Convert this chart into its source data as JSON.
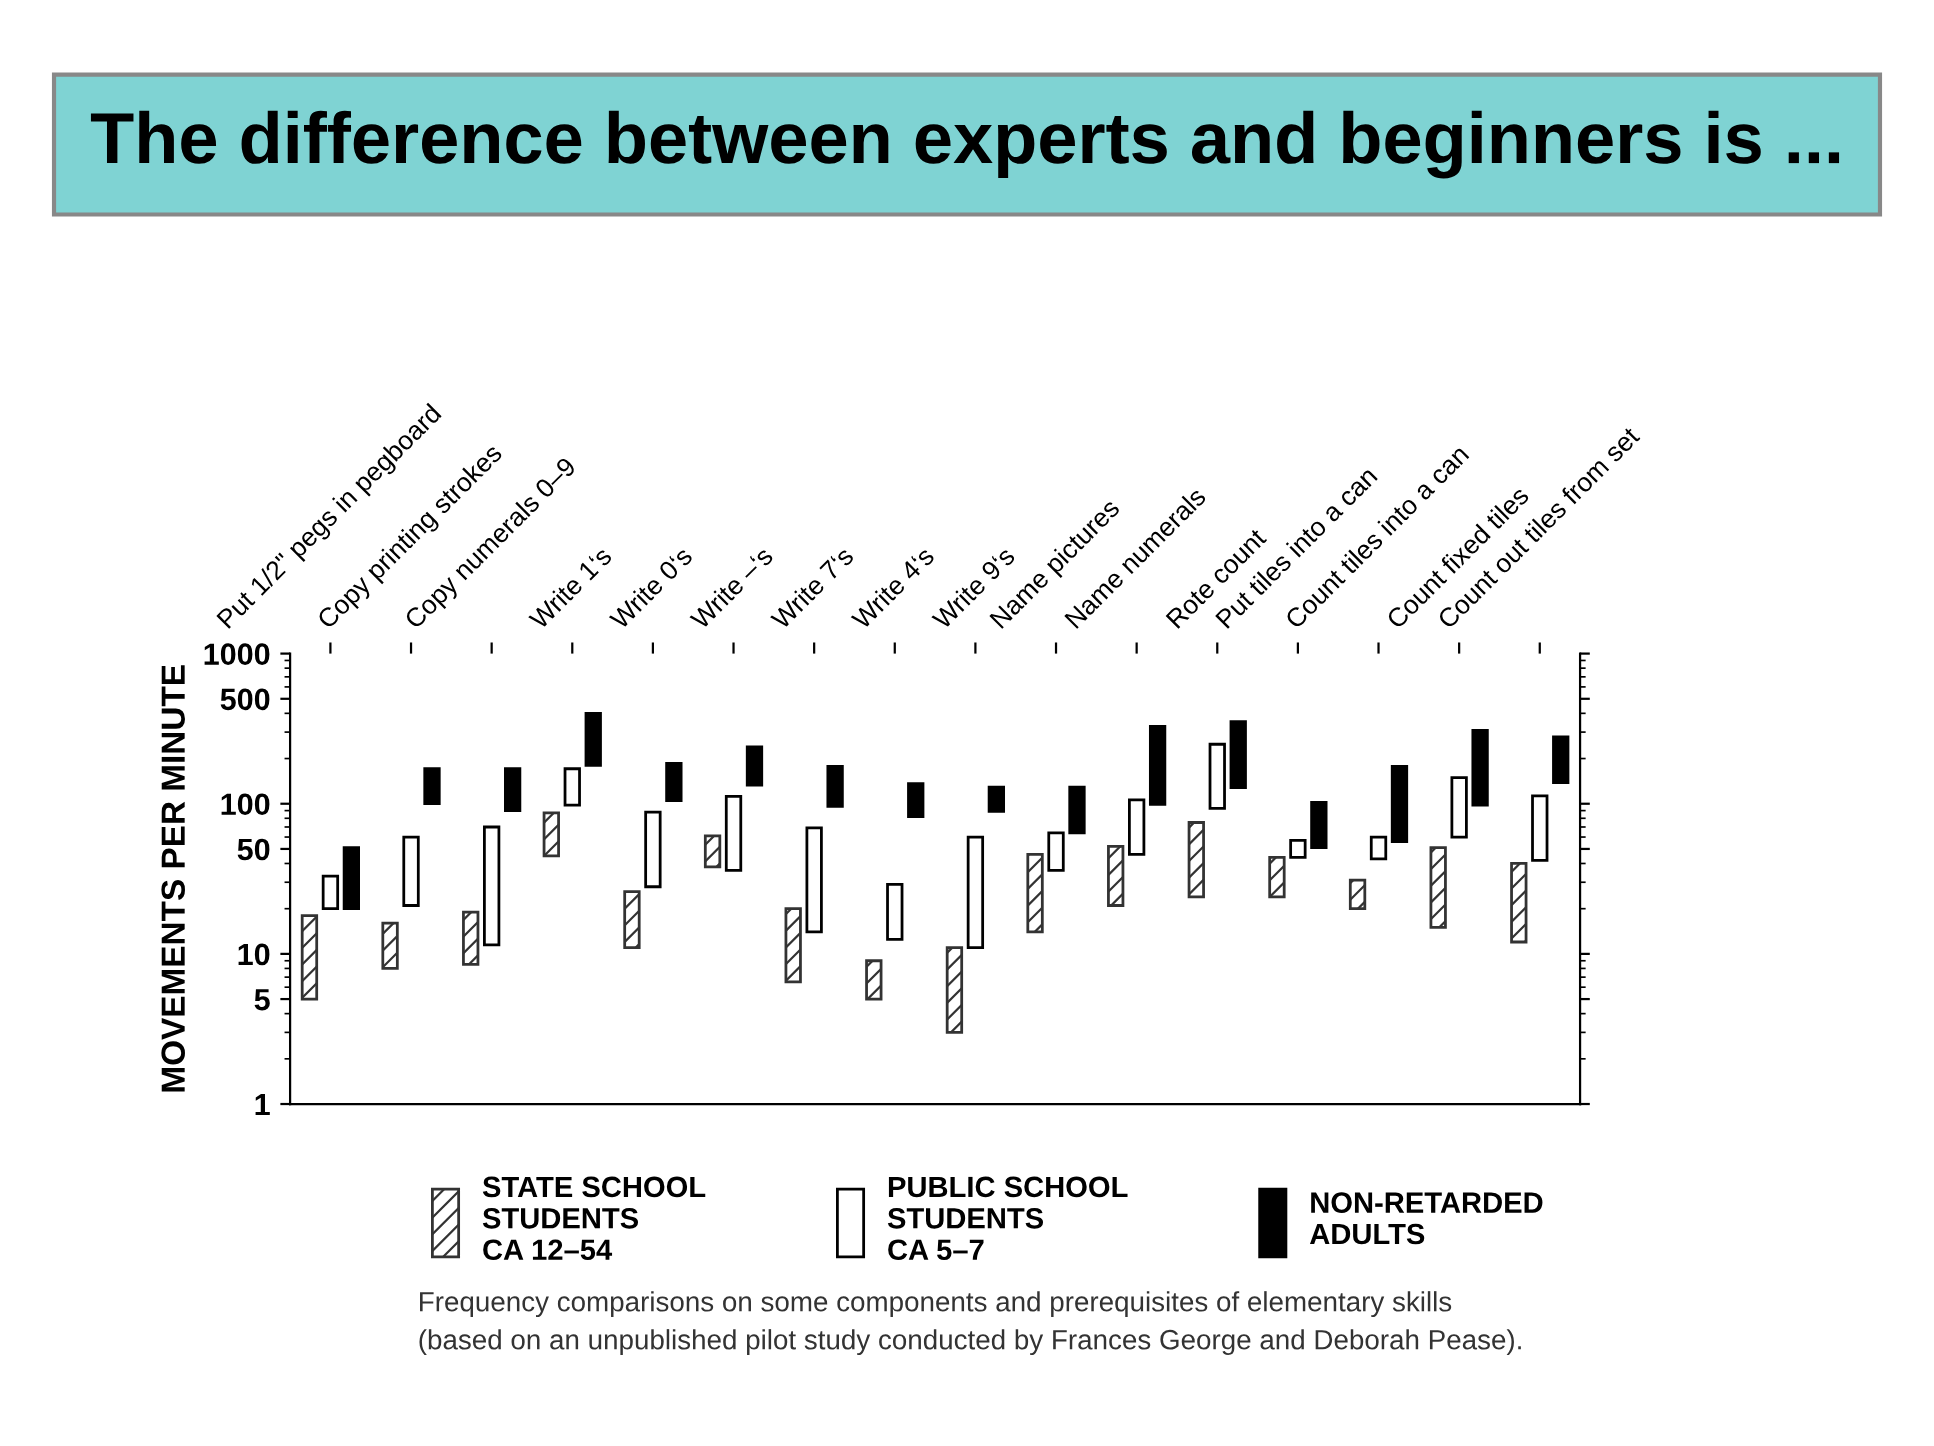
{
  "chart_data": {
    "type": "bar",
    "title": "The difference between experts and beginners is ...",
    "ylabel": "MOVEMENTS PER MINUTE",
    "categories": [
      "Put 1/2\" pegs in pegboard",
      "Copy printing strokes",
      "Copy numerals 0–9",
      "Write 1‘s",
      "Write 0‘s",
      "Write –‘s",
      "Write 7‘s",
      "Write 4‘s",
      "Write 9‘s",
      "Name pictures",
      "Name numerals",
      "Rote count",
      "Put tiles into a can",
      "Count tiles into a can",
      "Count fixed tiles",
      "Count out tiles from set"
    ],
    "series": [
      {
        "name": "STATE SCHOOL\nSTUDENTS\nCA 12–54",
        "color": "#333333",
        "base": [
          5,
          8,
          8.5,
          45,
          11,
          38,
          6.5,
          5,
          3,
          14,
          21,
          24,
          24,
          20,
          15,
          12
        ],
        "values": [
          13,
          8,
          10.5,
          42,
          15,
          23,
          13.5,
          4,
          8,
          32,
          31,
          51,
          20,
          11,
          36,
          28
        ]
      },
      {
        "name": "PUBLIC SCHOOL\nSTUDENTS\nCA 5–7",
        "color": "#ffffff",
        "base": [
          20,
          21,
          11.5,
          98,
          28,
          36,
          14,
          12.5,
          11,
          36,
          46,
          93,
          44,
          43,
          60,
          42
        ],
        "values": [
          13,
          39,
          58.5,
          73,
          60,
          76,
          55,
          16.5,
          49,
          28,
          60,
          156,
          13,
          17,
          89,
          71
        ]
      },
      {
        "name": "NON-RETARDED\nADULTS",
        "color": "#000000",
        "base": [
          20,
          100,
          90,
          180,
          105,
          133,
          96,
          82,
          89,
          64,
          99,
          128,
          51,
          56,
          98,
          138
        ],
        "values": [
          31,
          71,
          81,
          220,
          81,
          106,
          81,
          54,
          40,
          65,
          229,
          224,
          51,
          121,
          210,
          141
        ]
      }
    ],
    "log": true,
    "ylim": [
      1,
      1000
    ],
    "yticks": [
      1,
      5,
      10,
      50,
      100,
      500,
      1000
    ],
    "legend": "bottom",
    "grid": false,
    "annotations": [
      "Frequency comparisons on some components and prerequisites of elementary skills\n(based on an unpublished pilot study conducted by Frances George and Deborah Pease)."
    ]
  }
}
